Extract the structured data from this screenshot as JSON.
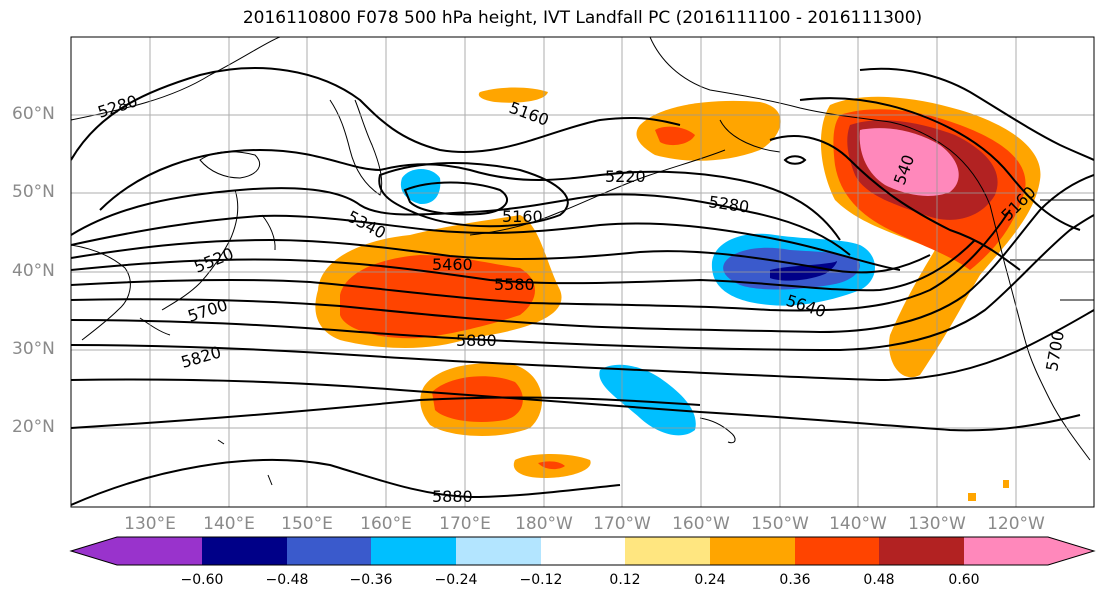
{
  "title": "2016110800 F078 500 hPa height, IVT Landfall PC (2016111100 - 2016111300)",
  "map": {
    "lat_labels": [
      "60°N",
      "50°N",
      "40°N",
      "30°N",
      "20°N"
    ],
    "lon_labels": [
      "130°E",
      "140°E",
      "150°E",
      "160°E",
      "170°E",
      "180°W",
      "170°W",
      "160°W",
      "150°W",
      "140°W",
      "130°W",
      "120°W"
    ],
    "height_contour_labels": [
      "5280",
      "5160",
      "5220",
      "5160",
      "5280",
      "5340",
      "5460",
      "5580",
      "5520",
      "5700",
      "5880",
      "5820",
      "5640",
      "5160",
      "540",
      "5700",
      "5880"
    ],
    "grid": true,
    "coastline_color": "#000000",
    "contour_color": "#000000"
  },
  "colorbar": {
    "tick_labels": [
      "−0.60",
      "−0.48",
      "−0.36",
      "−0.24",
      "−0.12",
      "0.12",
      "0.24",
      "0.36",
      "0.48",
      "0.60"
    ],
    "colors": [
      "#9933cc",
      "#000088",
      "#3a5acc",
      "#00bfff",
      "#b3e5ff",
      "#ffffff",
      "#ffe680",
      "#ffa500",
      "#ff4400",
      "#b22222",
      "#ff88bb"
    ],
    "extend": "both"
  }
}
